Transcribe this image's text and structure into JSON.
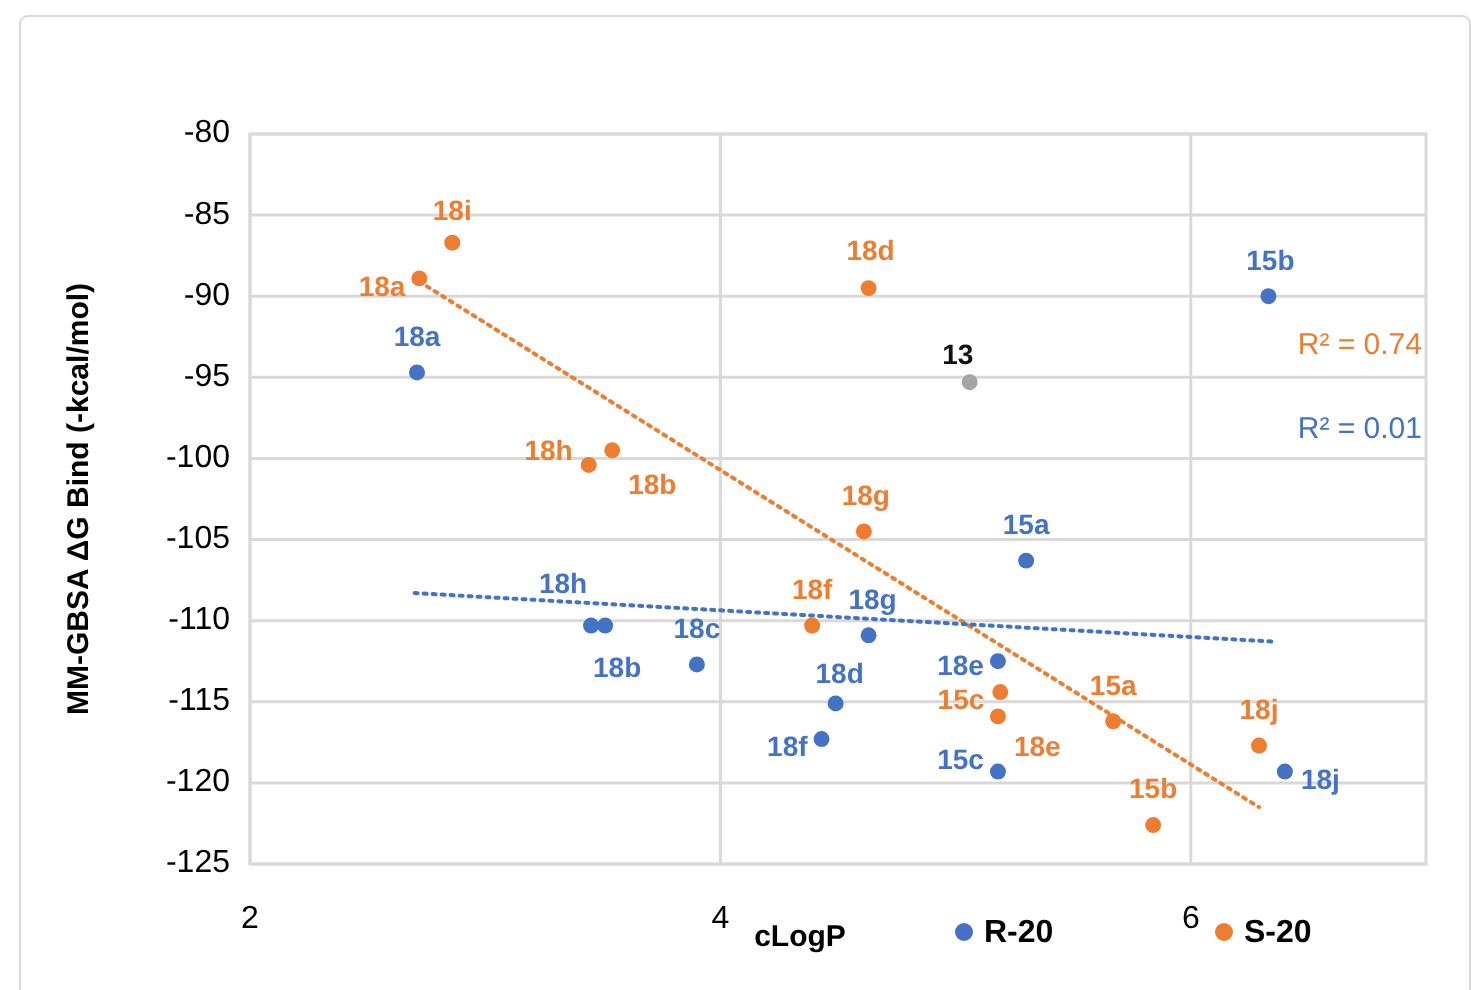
{
  "chart_data": {
    "type": "scatter",
    "xlabel": "cLogP",
    "ylabel": "MM-GBSA ΔG Bind (-kcal/mol)",
    "xlim": [
      2,
      7
    ],
    "xticks": [
      2,
      4,
      6
    ],
    "ylim": [
      -125,
      -80
    ],
    "yticks": [
      -80,
      -85,
      -90,
      -95,
      -100,
      -105,
      -110,
      -115,
      -120,
      -125
    ],
    "grid": true,
    "legend": "bottom",
    "marker": "circle",
    "series": [
      {
        "name": "R-20",
        "color": "#4472c4",
        "x": [
          2.71,
          3.45,
          3.51,
          3.9,
          4.43,
          4.49,
          4.63,
          5.3,
          5.18,
          5.18,
          6.33,
          6.4
        ],
        "values": [
          -94.7,
          -110.3,
          -110.3,
          -112.7,
          -117.3,
          -115.1,
          -110.9,
          -106.3,
          -112.5,
          -119.3,
          -90.0,
          -119.3
        ]
      },
      {
        "name": "S-20",
        "color": "#ed7d31",
        "x": [
          2.86,
          2.72,
          3.44,
          3.54,
          4.39,
          4.63,
          4.61,
          5.19,
          5.18,
          5.67,
          5.84,
          6.29
        ],
        "values": [
          -86.7,
          -88.9,
          -100.4,
          -99.5,
          -110.3,
          -89.5,
          -104.5,
          -114.4,
          -115.9,
          -116.2,
          -122.6,
          -117.7
        ]
      },
      {
        "color": "#a5a5a5",
        "x": [
          5.06
        ],
        "values": [
          -95.3
        ]
      },
      {
        "type": "line",
        "color": "#ed7d31",
        "line_style": "dotted",
        "marker": "none",
        "x": [
          2.72,
          6.29
        ],
        "values": [
          -89.1,
          -121.5
        ]
      },
      {
        "type": "line",
        "color": "#4472c4",
        "line_style": "dotted",
        "marker": "none",
        "x": [
          2.7,
          6.36
        ],
        "values": [
          -108.3,
          -111.3
        ]
      }
    ],
    "annotations": [
      "R² = 0.74",
      "R² = 0.01",
      {
        "text": "18a",
        "x": 2.71,
        "y": -94.7
      },
      {
        "text": "18h",
        "x": 3.45,
        "y": -110.3
      },
      {
        "text": "18b",
        "x": 3.51,
        "y": -110.3
      },
      {
        "text": "18c",
        "x": 3.9,
        "y": -112.7
      },
      {
        "text": "18f",
        "x": 4.43,
        "y": -117.3
      },
      {
        "text": "18d",
        "x": 4.49,
        "y": -115.1
      },
      {
        "text": "18g",
        "x": 4.63,
        "y": -110.9
      },
      {
        "text": "15a",
        "x": 5.3,
        "y": -106.3
      },
      {
        "text": "18e",
        "x": 5.18,
        "y": -112.5
      },
      {
        "text": "15c",
        "x": 5.18,
        "y": -119.3
      },
      {
        "text": "15b",
        "x": 6.33,
        "y": -90.0
      },
      {
        "text": "18j",
        "x": 6.4,
        "y": -119.3
      },
      {
        "text": "18i",
        "x": 2.86,
        "y": -86.7
      },
      {
        "text": "18a",
        "x": 2.72,
        "y": -88.9
      },
      {
        "text": "18h",
        "x": 3.44,
        "y": -100.4
      },
      {
        "text": "18b",
        "x": 3.54,
        "y": -99.5
      },
      {
        "text": "18f",
        "x": 4.39,
        "y": -110.3
      },
      {
        "text": "18d",
        "x": 4.63,
        "y": -89.5
      },
      {
        "text": "18g",
        "x": 4.61,
        "y": -104.5
      },
      {
        "text": "15c",
        "x": 5.19,
        "y": -114.4
      },
      {
        "text": "18e",
        "x": 5.18,
        "y": -115.9
      },
      {
        "text": "15a",
        "x": 5.67,
        "y": -116.2
      },
      {
        "text": "15b",
        "x": 5.84,
        "y": -122.6
      },
      {
        "text": "18j",
        "x": 6.29,
        "y": -117.7
      },
      {
        "text": "13",
        "x": 5.06,
        "y": -95.3
      }
    ]
  }
}
